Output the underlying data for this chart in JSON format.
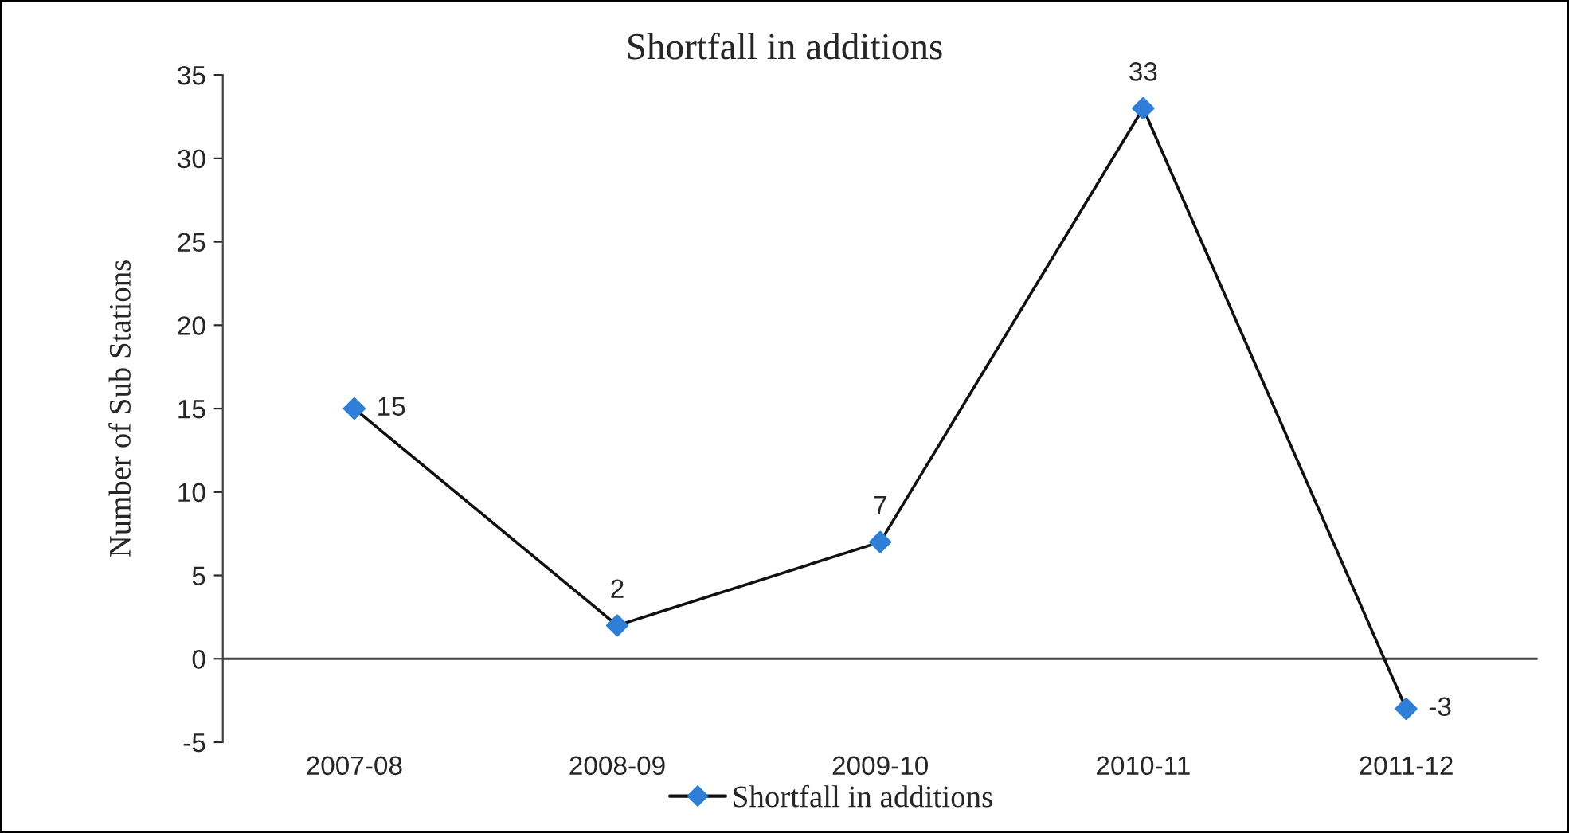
{
  "chart_data": {
    "type": "line",
    "title": "Shortfall in additions",
    "ylabel": "Number of Sub Stations",
    "categories": [
      "2007-08",
      "2008-09",
      "2009-10",
      "2010-11",
      "2011-12"
    ],
    "series": [
      {
        "name": "Shortfall in additions",
        "color": "#2f7fd8",
        "values": [
          15,
          2,
          7,
          33,
          -3
        ]
      }
    ],
    "ylim": [
      -5,
      35
    ],
    "yticks": [
      -5,
      0,
      5,
      10,
      15,
      20,
      25,
      30,
      35
    ],
    "ref_lines": [
      {
        "axis": "y",
        "value": 0,
        "color": "#444444"
      }
    ],
    "grid": false,
    "legend": "bottom",
    "marker": "diamond",
    "line_style": "solid",
    "data_labels": true
  }
}
